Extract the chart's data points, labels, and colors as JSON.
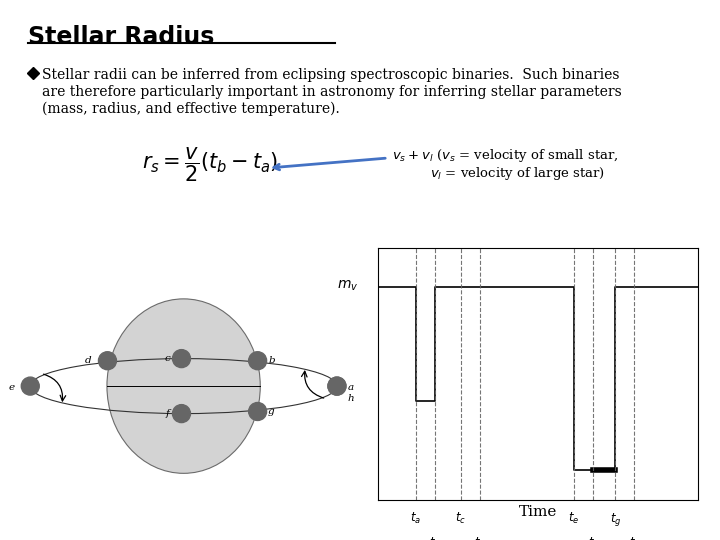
{
  "title": "Stellar Radius",
  "bullet_lines": [
    "Stellar radii can be inferred from eclipsing spectroscopic binaries.  Such binaries",
    "are therefore particularly important in astronomy for inferring stellar parameters",
    "(mass, radius, and effective temperature)."
  ],
  "annotation_line1": "v_s + v_l (v_s = velocity of small star,",
  "annotation_line2": "v_l = velocity of large star)",
  "xlabel": "Time",
  "ylabel": "m_v",
  "title_color": "#000000",
  "text_color": "#000000",
  "arrow_color": "#4472c4",
  "fig_bg": "#ffffff",
  "lc_high": 0.88,
  "lc_low_annular": 0.38,
  "lc_low_total": 0.08,
  "ta": 1.0,
  "tb": 1.5,
  "tc": 2.2,
  "td": 2.7,
  "te": 5.2,
  "tf": 5.7,
  "tg": 6.3,
  "th": 6.8,
  "xlim_max": 8.5
}
